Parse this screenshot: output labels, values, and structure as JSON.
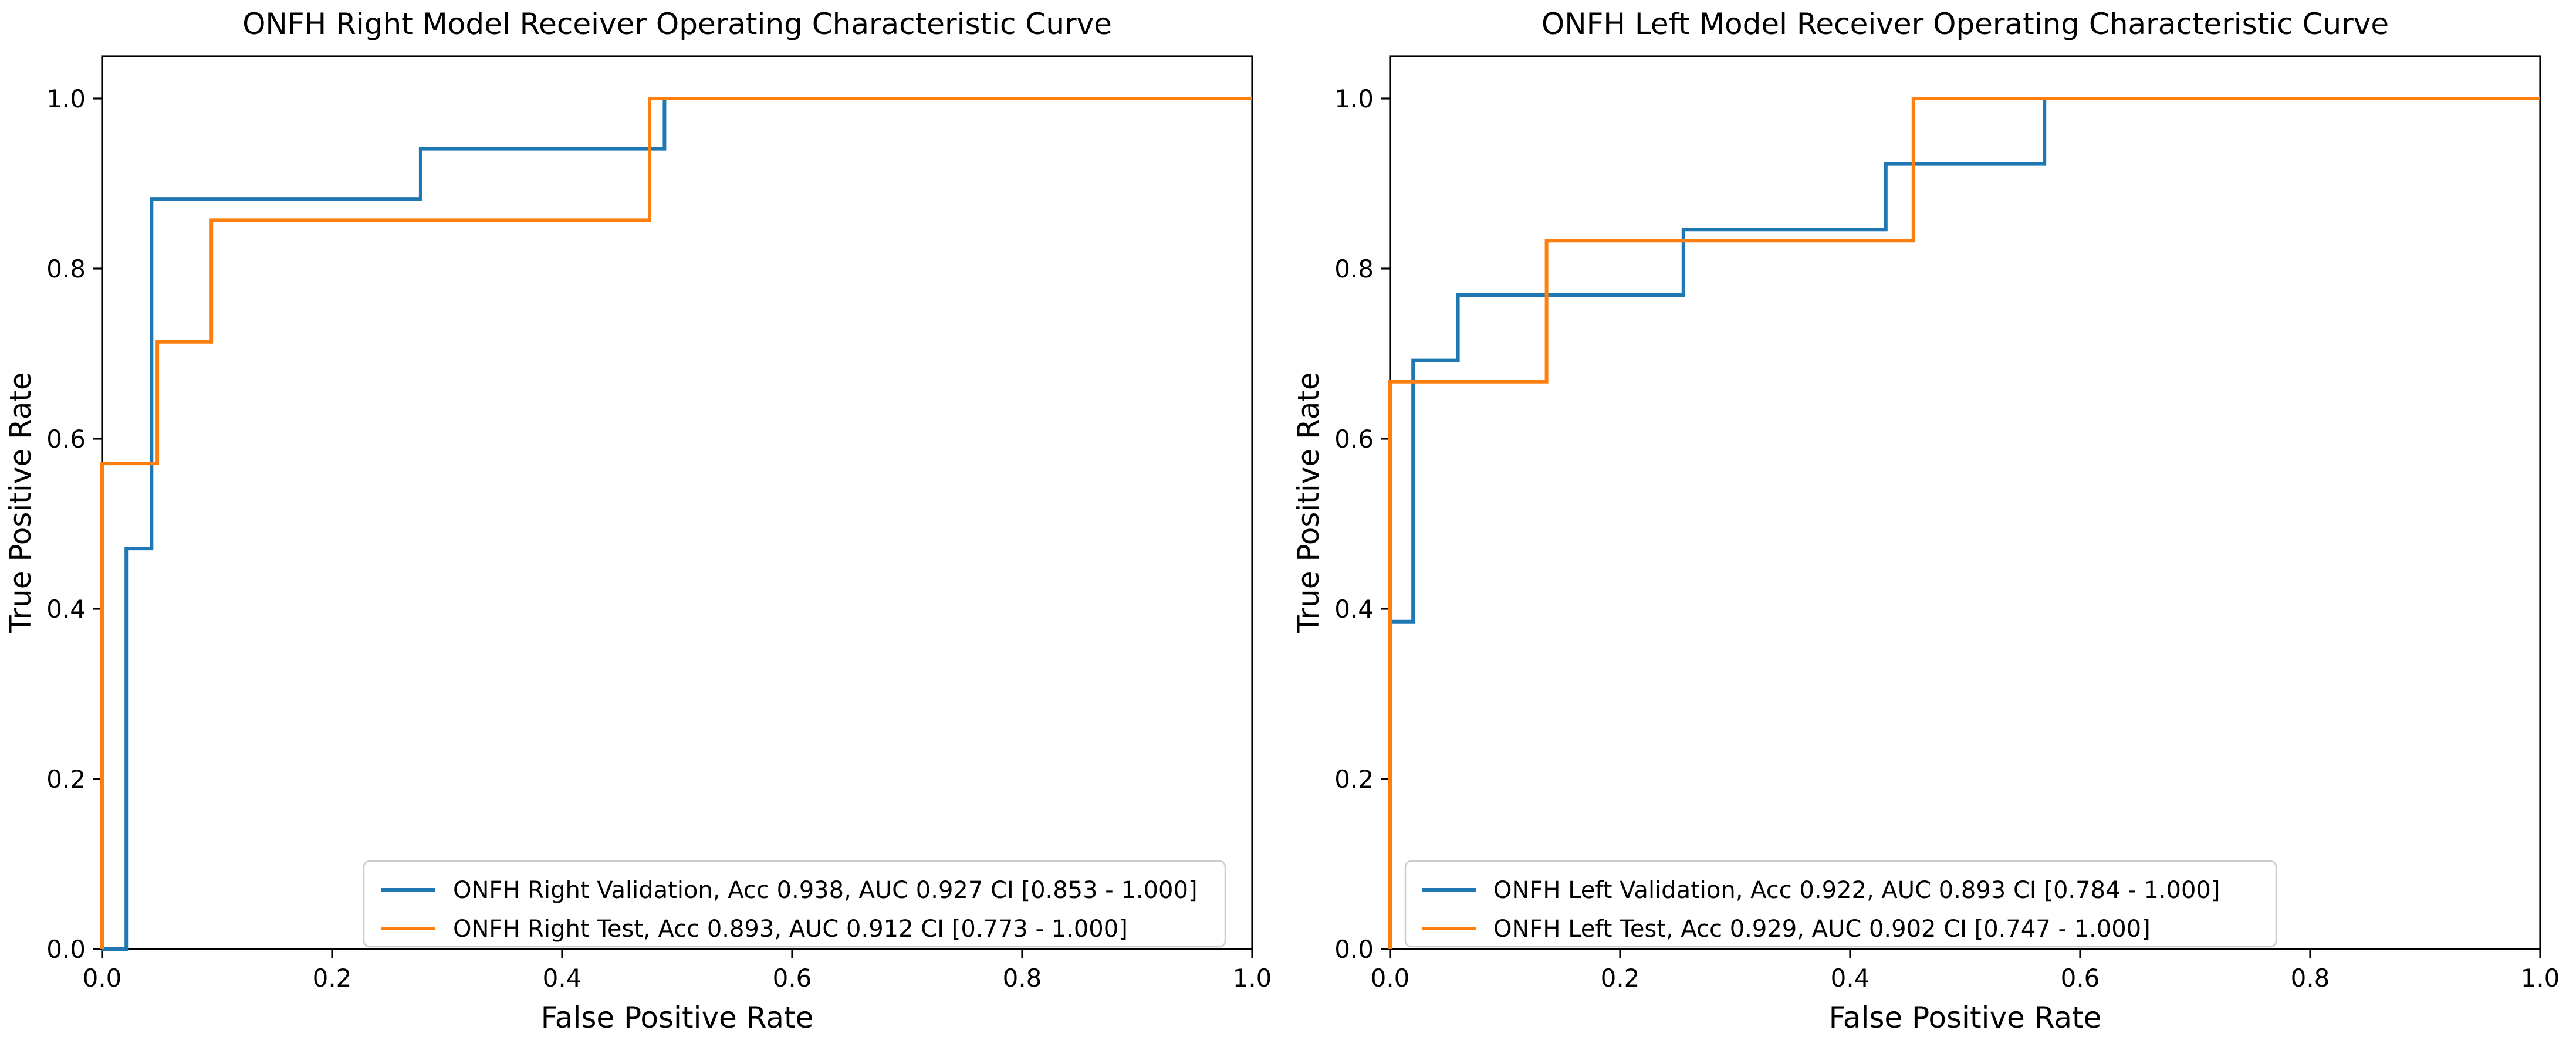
{
  "figure": {
    "background": "#ffffff",
    "text_color": "#000000"
  },
  "colors": {
    "validation": "#1f77b4",
    "test": "#ff7f0e",
    "spine": "#000000",
    "legend_border": "#cccccc",
    "legend_bg": "#ffffff"
  },
  "chart_data": [
    {
      "type": "line",
      "subtype": "roc-step-curve",
      "title": "ONFH Right Model Receiver Operating Characteristic Curve",
      "xlabel": "False Positive Rate",
      "ylabel": "True Positive Rate",
      "xlim": [
        0,
        1
      ],
      "ylim": [
        0,
        1.05
      ],
      "grid": false,
      "legend_position": "lower right",
      "xticks": [
        0,
        0.2,
        0.4,
        0.6,
        0.8,
        1.0
      ],
      "yticks": [
        0,
        0.2,
        0.4,
        0.6,
        0.8,
        1.0
      ],
      "xtick_labels": [
        "0.0",
        "0.2",
        "0.4",
        "0.6",
        "0.8",
        "1.0"
      ],
      "ytick_labels": [
        "0.0",
        "0.2",
        "0.4",
        "0.6",
        "0.8",
        "1.0"
      ],
      "series": [
        {
          "name": "ONFH Right Validation",
          "label": "ONFH Right Validation, Acc 0.938, AUC 0.927 CI [0.853 - 1.000]",
          "acc": 0.938,
          "auc": 0.927,
          "ci_low": 0.853,
          "ci_high": 1.0,
          "color_key": "validation",
          "x": [
            0,
            0.021,
            0.021,
            0.043,
            0.043,
            0.277,
            0.277,
            0.489,
            0.489,
            1.0
          ],
          "y": [
            0,
            0.0,
            0.471,
            0.471,
            0.882,
            0.882,
            0.941,
            0.941,
            1.0,
            1.0
          ]
        },
        {
          "name": "ONFH Right Test",
          "label": "ONFH Right Test, Acc 0.893, AUC 0.912 CI [0.773 - 1.000]",
          "acc": 0.893,
          "auc": 0.912,
          "ci_low": 0.773,
          "ci_high": 1.0,
          "color_key": "test",
          "x": [
            0,
            0.0,
            0.048,
            0.048,
            0.095,
            0.095,
            0.476,
            0.476,
            1.0
          ],
          "y": [
            0,
            0.571,
            0.571,
            0.714,
            0.714,
            0.857,
            0.857,
            1.0,
            1.0
          ]
        }
      ]
    },
    {
      "type": "line",
      "subtype": "roc-step-curve",
      "title": "ONFH Left Model Receiver Operating Characteristic Curve",
      "xlabel": "False Positive Rate",
      "ylabel": "True Positive Rate",
      "xlim": [
        0,
        1
      ],
      "ylim": [
        0,
        1.05
      ],
      "grid": false,
      "legend_position": "lower left",
      "xticks": [
        0,
        0.2,
        0.4,
        0.6,
        0.8,
        1.0
      ],
      "yticks": [
        0,
        0.2,
        0.4,
        0.6,
        0.8,
        1.0
      ],
      "xtick_labels": [
        "0.0",
        "0.2",
        "0.4",
        "0.6",
        "0.8",
        "1.0"
      ],
      "ytick_labels": [
        "0.0",
        "0.2",
        "0.4",
        "0.6",
        "0.8",
        "1.0"
      ],
      "series": [
        {
          "name": "ONFH Left Validation",
          "label": "ONFH Left Validation, Acc 0.922, AUC 0.893 CI [0.784 - 1.000]",
          "acc": 0.922,
          "auc": 0.893,
          "ci_low": 0.784,
          "ci_high": 1.0,
          "color_key": "validation",
          "x": [
            0,
            0.0,
            0.02,
            0.02,
            0.059,
            0.059,
            0.255,
            0.255,
            0.431,
            0.431,
            0.569,
            0.569,
            1.0
          ],
          "y": [
            0,
            0.385,
            0.385,
            0.692,
            0.692,
            0.769,
            0.769,
            0.846,
            0.846,
            0.923,
            0.923,
            1.0,
            1.0
          ]
        },
        {
          "name": "ONFH Left Test",
          "label": "ONFH Left Test, Acc 0.929, AUC 0.902 CI [0.747 - 1.000]",
          "acc": 0.929,
          "auc": 0.902,
          "ci_low": 0.747,
          "ci_high": 1.0,
          "color_key": "test",
          "x": [
            0,
            0.0,
            0.136,
            0.136,
            0.455,
            0.455,
            1.0
          ],
          "y": [
            0,
            0.667,
            0.667,
            0.833,
            0.833,
            1.0,
            1.0
          ]
        }
      ]
    }
  ]
}
